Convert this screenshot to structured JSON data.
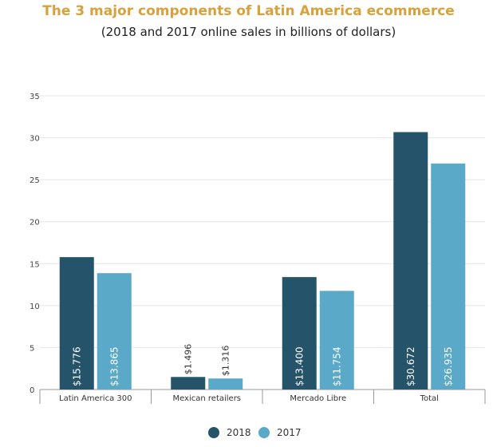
{
  "colors": {
    "title": "#d9a13b",
    "s2018": "#24536a",
    "s2017": "#5aa9c8",
    "grid": "#e6e6e6"
  },
  "chart_data": {
    "type": "bar",
    "title": "The 3 major components of Latin America ecommerce",
    "subtitle": "(2018 and 2017 online sales in billions of dollars)",
    "xlabel": "",
    "ylabel": "",
    "ylim": [
      0,
      35
    ],
    "yticks": [
      "0",
      "5",
      "10",
      "15",
      "20",
      "25",
      "30",
      "35"
    ],
    "grid": true,
    "legend_position": "bottom",
    "categories": [
      "Latin America 300",
      "Mexican retailers",
      "Mercado Libre",
      "Total"
    ],
    "series": [
      {
        "name": "2018",
        "values": [
          15.776,
          1.496,
          13.4,
          30.672
        ],
        "labels": [
          "$15.776",
          "$1.496",
          "$13.400",
          "$30.672"
        ]
      },
      {
        "name": "2017",
        "values": [
          13.865,
          1.316,
          11.754,
          26.935
        ],
        "labels": [
          "$13.865",
          "$1.316",
          "$11.754",
          "$26.935"
        ]
      }
    ]
  }
}
